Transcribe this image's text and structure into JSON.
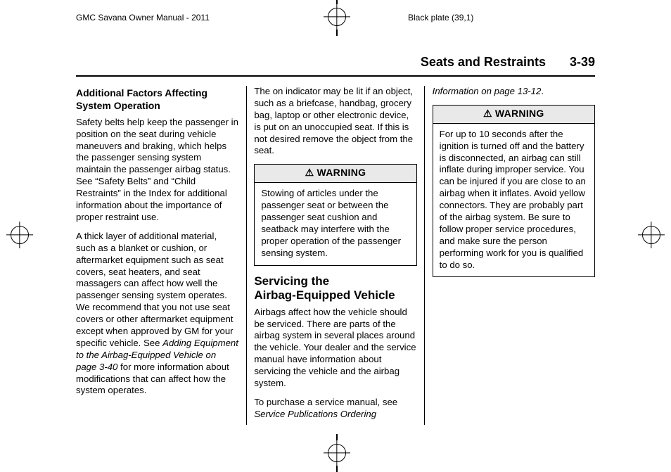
{
  "meta": {
    "top_left": "GMC Savana Owner Manual - 2011",
    "top_right": "Black plate (39,1)"
  },
  "header": {
    "section": "Seats and Restraints",
    "pageno": "3-39"
  },
  "col1": {
    "h3": "Additional Factors Affecting System Operation",
    "p1a": "Safety belts help keep the passenger in position on the seat during vehicle maneuvers and braking, which helps the passenger sensing system maintain the passenger airbag status. See ",
    "p1b": "“Safety Belts”",
    "p1c": " and ",
    "p1d": "“Child Restraints”",
    "p1e": " in the Index for additional information about the importance of proper restraint use.",
    "p2a": "A thick layer of additional material, such as a blanket or cushion, or aftermarket equipment such as seat covers, seat heaters, and seat massagers can affect how well the passenger sensing system operates. We recommend that you not use seat covers or other aftermarket equipment except when approved by GM for your specific vehicle. See ",
    "p2b": "Adding Equipment to the Airbag-Equipped Vehicle on page 3‑40",
    "p2c": " for more information about modifications that can affect how the system operates."
  },
  "col2": {
    "p1": "The on indicator may be lit if an object, such as a briefcase, handbag, grocery bag, laptop or other electronic device, is put on an unoccupied seat. If this is not desired remove the object from the seat.",
    "warn1_label": "WARNING",
    "warn1_body": "Stowing of articles under the passenger seat or between the passenger seat cushion and seatback may interfere with the proper operation of the passenger sensing system.",
    "h2a": "Servicing the",
    "h2b": "Airbag-Equipped Vehicle",
    "p2": "Airbags affect how the vehicle should be serviced. There are parts of the airbag system in several places around the vehicle. Your dealer and the service manual have information about servicing the vehicle and the airbag system."
  },
  "col3": {
    "p1a": "To purchase a service manual, see ",
    "p1b": "Service Publications Ordering Information on page 13‑12",
    "p1c": ".",
    "warn2_label": "WARNING",
    "warn2_body": "For up to 10 seconds after the ignition is turned off and the battery is disconnected, an airbag can still inflate during improper service. You can be injured if you are close to an airbag when it inflates. Avoid yellow connectors. They are probably part of the airbag system. Be sure to follow proper service procedures, and make sure the person performing work for you is qualified to do so."
  },
  "icons": {
    "warning_triangle": "⚠"
  }
}
